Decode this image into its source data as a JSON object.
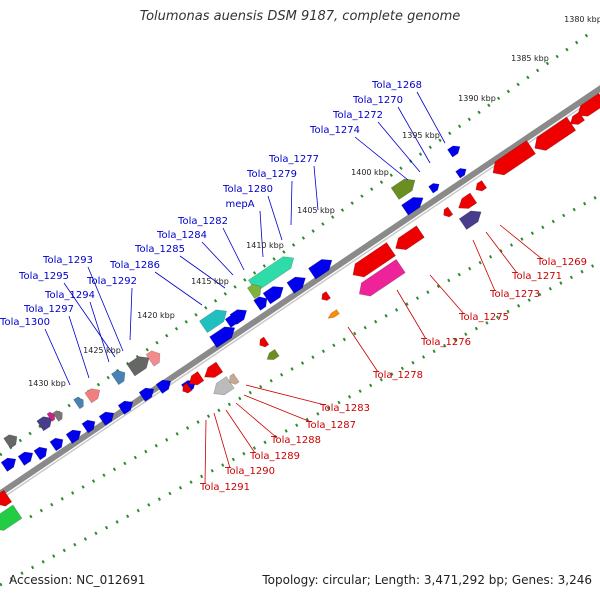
{
  "title": "Tolumonas auensis DSM 9187, complete genome",
  "footer": {
    "accession": "Accession: NC_012691",
    "summary": "Topology: circular; Length: 3,471,292 bp; Genes: 3,246"
  },
  "colors": {
    "forward_label": "#0000cc",
    "reverse_label": "#cc0000",
    "forward_arrow": "#0000ee",
    "reverse_arrow": "#ee0000",
    "tick": "#2e8b2e",
    "backbone": "#8a8a8a"
  },
  "ruler": [
    "1380 kbp",
    "1385 kbp",
    "1390 kbp",
    "1395 kbp",
    "1400 kbp",
    "1405 kbp",
    "1410 kbp",
    "1415 kbp",
    "1420 kbp",
    "1425 kbp",
    "1430 kbp"
  ],
  "forward_labels": [
    "Tola_1268",
    "Tola_1270",
    "Tola_1272",
    "Tola_1274",
    "Tola_1277",
    "Tola_1279",
    "Tola_1280",
    "mepA",
    "Tola_1282",
    "Tola_1284",
    "Tola_1285",
    "Tola_1286",
    "Tola_1292",
    "Tola_1293",
    "Tola_1295",
    "Tola_1294",
    "Tola_1297",
    "Tola_1300"
  ],
  "reverse_labels": [
    "Tola_1269",
    "Tola_1271",
    "Tola_1273",
    "Tola_1275",
    "Tola_1276",
    "Tola_1278",
    "Tola_1283",
    "Tola_1287",
    "Tola_1288",
    "Tola_1289",
    "Tola_1290",
    "Tola_1291"
  ]
}
